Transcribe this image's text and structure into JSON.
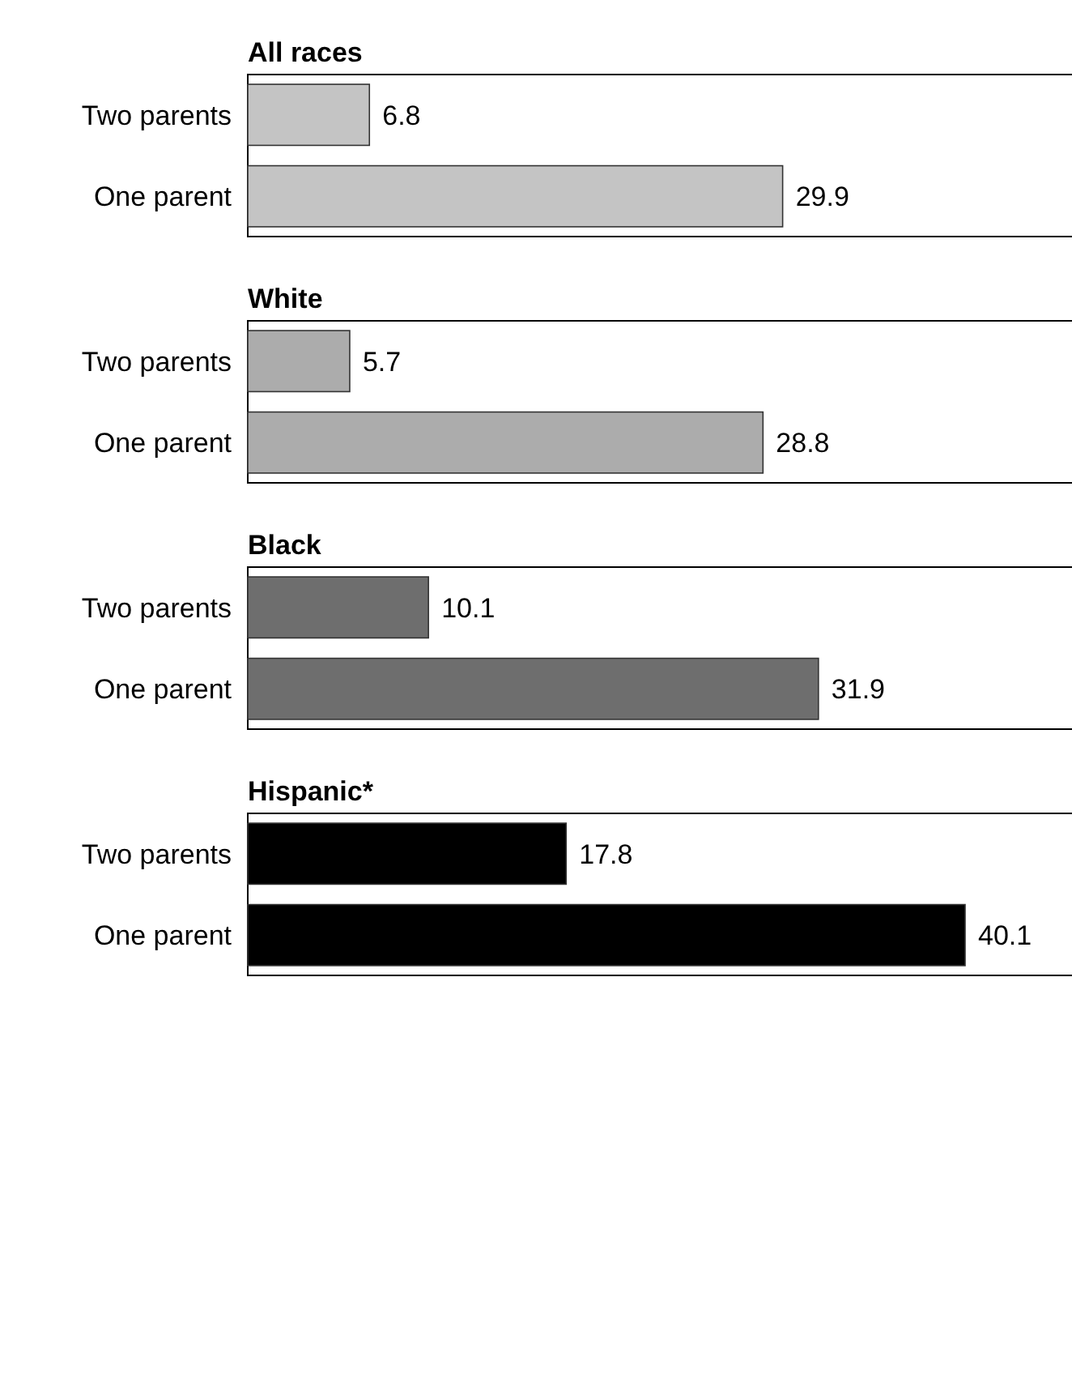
{
  "chart_data": [
    {
      "type": "bar",
      "orientation": "horizontal",
      "title": "All races",
      "categories": [
        "Two parents",
        "One parent"
      ],
      "values": [
        6.8,
        29.9
      ],
      "color": "#c4c4c4",
      "data_labels": true,
      "tick_labels": "y"
    },
    {
      "type": "bar",
      "orientation": "horizontal",
      "title": "White",
      "categories": [
        "Two parents",
        "One parent"
      ],
      "values": [
        5.7,
        28.8
      ],
      "color": "#acacac",
      "data_labels": true,
      "tick_labels": "y"
    },
    {
      "type": "bar",
      "orientation": "horizontal",
      "title": "Black",
      "categories": [
        "Two parents",
        "One parent"
      ],
      "values": [
        10.1,
        31.9
      ],
      "color": "#6e6e6e",
      "data_labels": true,
      "tick_labels": "y"
    },
    {
      "type": "bar",
      "orientation": "horizontal",
      "title": "Hispanic*",
      "categories": [
        "Two parents",
        "One parent"
      ],
      "values": [
        17.8,
        40.1
      ],
      "color": "#000000",
      "data_labels": true,
      "tick_labels": "y"
    }
  ]
}
